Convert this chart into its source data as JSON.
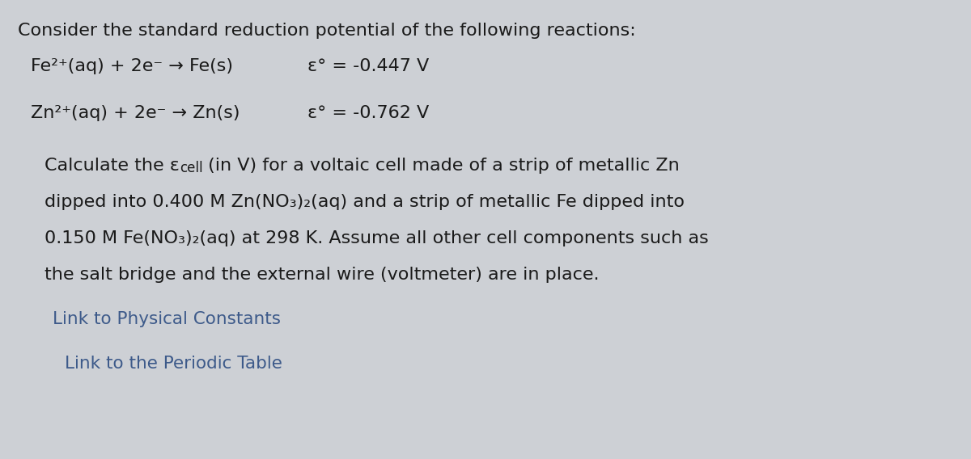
{
  "background_color": "#cdd0d5",
  "title_line": "Consider the standard reduction potential of the following reactions:",
  "reaction1_left": "Fe²⁺(aq) + 2e⁻ → Fe(s)",
  "reaction1_right": "ε° = -0.447 V",
  "reaction2_left": "Zn²⁺(aq) + 2e⁻ → Zn(s)",
  "reaction2_right": "ε° = -0.762 V",
  "para_line1a": "Calculate the ε",
  "para_line1b": "cell",
  "para_line1c": " (in V) for a voltaic cell made of a strip of metallic Zn",
  "para_line2": "dipped into 0.400 M Zn(NO₃)₂(aq) and a strip of metallic Fe dipped into",
  "para_line3": "0.150 M Fe(NO₃)₂(aq) at 298 K. Assume all other cell components such as",
  "para_line4": "the salt bridge and the external wire (voltmeter) are in place.",
  "link1": "Link to Physical Constants",
  "link2": "Link to the Periodic Table",
  "link_color": "#3d5a8a",
  "text_color": "#1a1a1a",
  "font_size_main": 16,
  "font_size_sub": 12,
  "font_size_link": 15.5
}
